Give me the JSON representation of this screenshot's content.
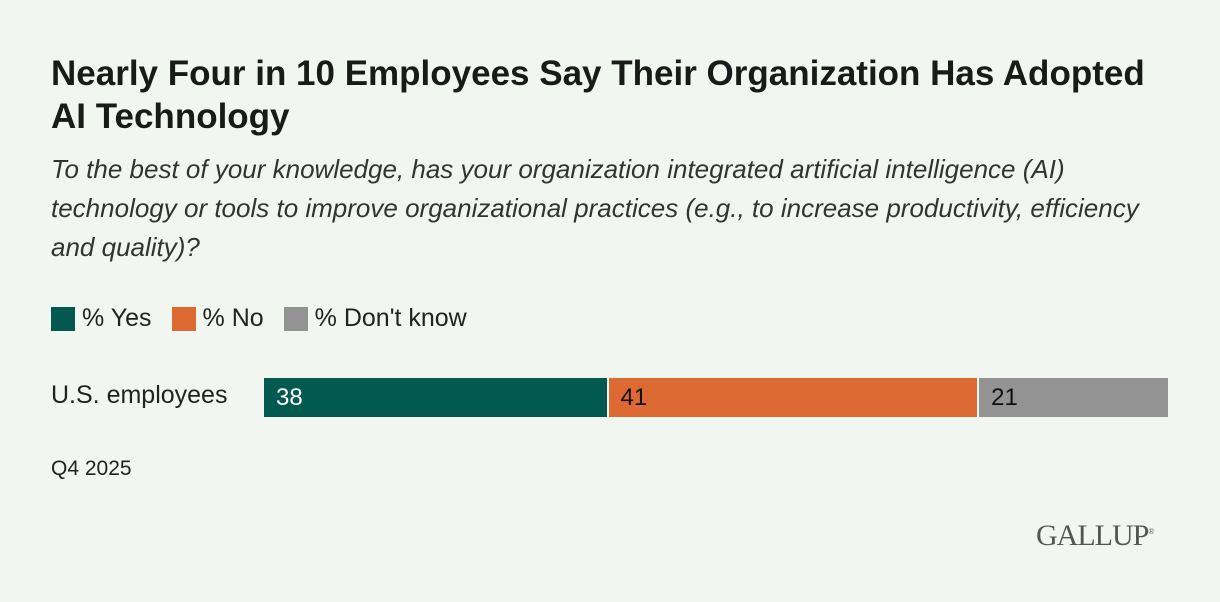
{
  "chart_data": {
    "type": "bar",
    "orientation": "horizontal-stacked",
    "title": "Nearly Four in 10 Employees Say Their Organization Has Adopted AI Technology",
    "subtitle": "To the best of your knowledge, has your organization integrated artificial intelligence (AI) technology or tools to improve organizational practices (e.g., to increase productivity, efficiency and quality)?",
    "categories": [
      "U.S. employees"
    ],
    "series": [
      {
        "name": "% Yes",
        "values": [
          38
        ],
        "color": "#02594f",
        "label_color": "#ffffff"
      },
      {
        "name": "% No",
        "values": [
          41
        ],
        "color": "#de6a33",
        "label_color": "#111111"
      },
      {
        "name": "% Don't know",
        "values": [
          21
        ],
        "color": "#939393",
        "label_color": "#111111"
      }
    ],
    "xlim": [
      0,
      100
    ],
    "legend_position": "top-left",
    "grid": false,
    "note": "Q4 2025",
    "source_logo": "GALLUP"
  }
}
